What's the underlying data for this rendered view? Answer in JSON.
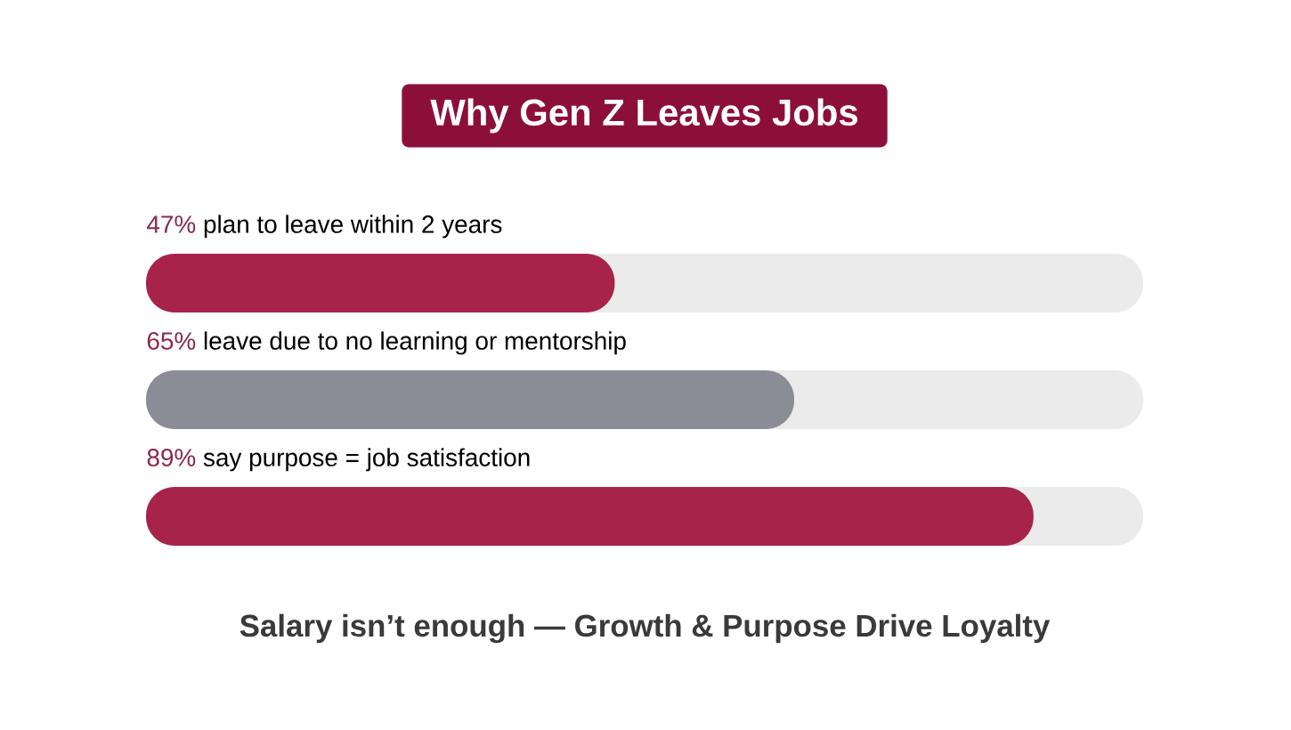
{
  "chart_data": {
    "type": "bar",
    "orientation": "horizontal",
    "title": "Why Gen Z Leaves Jobs",
    "categories": [
      "plan to leave within 2 years",
      "leave due to no learning or mentorship",
      "say purpose = job satisfaction"
    ],
    "values": [
      47,
      65,
      89
    ],
    "value_labels": [
      "47%",
      "65%",
      "89%"
    ],
    "colors": [
      "#a8234a",
      "#8a8c96",
      "#a8234a"
    ],
    "xlim": [
      0,
      100
    ],
    "annotations": [
      "Salary isn’t enough — Growth & Purpose Drive Loyalty"
    ]
  }
}
